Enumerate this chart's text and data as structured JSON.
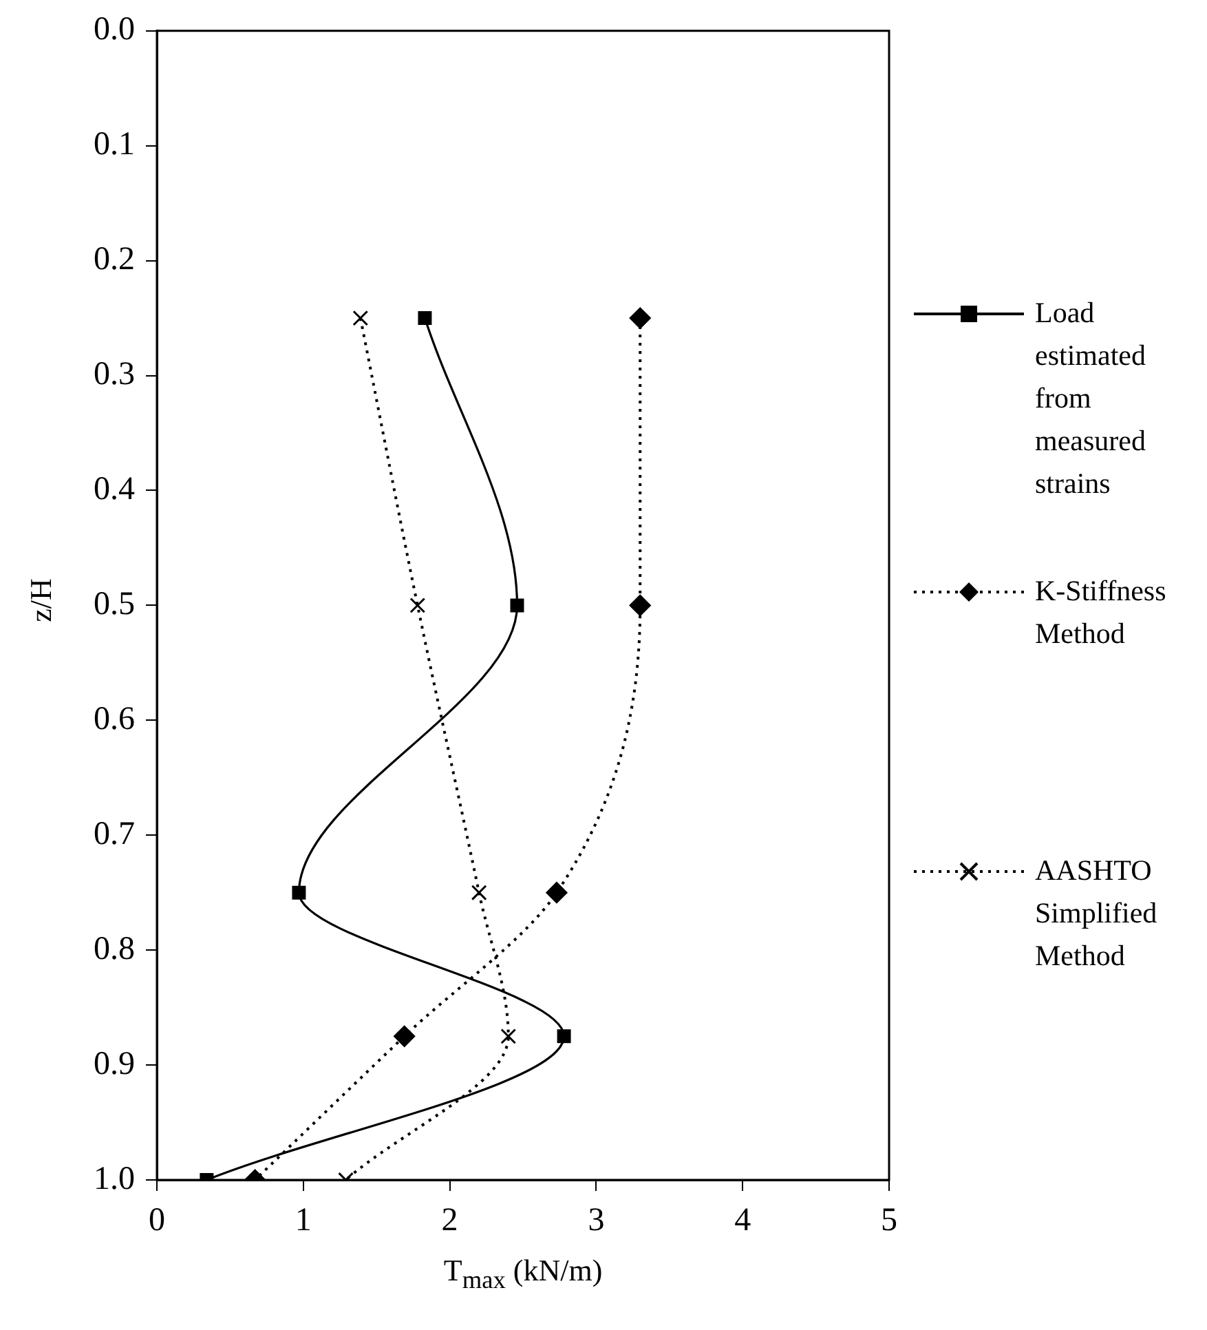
{
  "chart_data": {
    "type": "line",
    "xlabel": "T$_{max}$ (kN/m)",
    "ylabel": "z/H",
    "xlim": [
      0,
      5
    ],
    "xticks": [
      0,
      1,
      2,
      3,
      4,
      5
    ],
    "ylim": [
      1.0,
      0.0
    ],
    "yticks": [
      {
        "value": 0,
        "label": "0.0"
      },
      0.1,
      0.2,
      0.3,
      0.4,
      0.5,
      0.6,
      0.7,
      0.8,
      0.9,
      {
        "value": 1,
        "label": "1.0"
      }
    ],
    "grid": false,
    "legend": "right",
    "series": [
      {
        "name": "Load estimated from measured strains",
        "color": "#000000",
        "marker": "square",
        "line_style": "solid",
        "x": [
          1.83,
          2.46,
          0.97,
          2.78,
          0.34
        ],
        "values": [
          0.25,
          0.5,
          0.75,
          0.875,
          1.0
        ]
      },
      {
        "name": "K-Stiffness Method",
        "color": "#000000",
        "marker": "diamond",
        "line_style": "dotted",
        "x": [
          3.3,
          3.3,
          2.73,
          1.69,
          0.67
        ],
        "values": [
          0.25,
          0.5,
          0.75,
          0.875,
          1.0
        ]
      },
      {
        "name": "AASHTO Simplified Method",
        "color": "#000000",
        "marker": "cross",
        "line_style": "dotted",
        "x": [
          1.39,
          1.78,
          2.2,
          2.4,
          1.29
        ],
        "values": [
          0.25,
          0.5,
          0.75,
          0.875,
          1.0
        ]
      }
    ]
  }
}
